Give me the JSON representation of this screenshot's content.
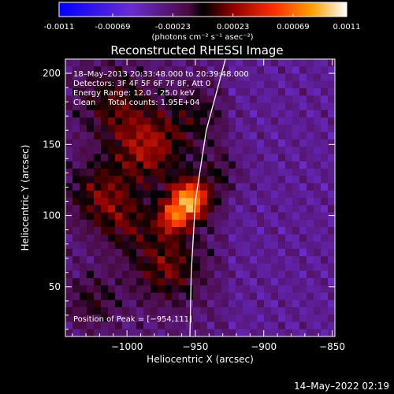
{
  "colorbar": {
    "ticks": [
      "-0.0011",
      "-0.00069",
      "-0.00023",
      "0.00023",
      "0.00069",
      "0.0011"
    ],
    "units": "(photons cm⁻² s⁻¹ asec⁻²)"
  },
  "chart_data": {
    "type": "heatmap",
    "title": "Reconstructed RHESSI Image",
    "xlabel": "Heliocentric X (arcsec)",
    "ylabel": "Heliocentric Y (arcsec)",
    "xlim": [
      -1045,
      -848
    ],
    "ylim": [
      15,
      210
    ],
    "xticks": [
      -1000,
      -950,
      -900,
      -850
    ],
    "yticks": [
      50,
      100,
      150,
      200
    ],
    "xtick_labels": [
      "−1000",
      "−950",
      "−900",
      "−850"
    ],
    "ytick_labels": [
      "50",
      "100",
      "150",
      "200"
    ],
    "value_range": [
      -0.0011,
      0.0011
    ],
    "peak": {
      "x": -954,
      "y": 111
    },
    "sources": [
      {
        "x": -954,
        "y": 111,
        "amp": 0.0011,
        "sigma": 10
      },
      {
        "x": -967,
        "y": 98,
        "amp": 0.0006,
        "sigma": 8
      },
      {
        "x": -985,
        "y": 148,
        "amp": 0.00055,
        "sigma": 18
      },
      {
        "x": -970,
        "y": 65,
        "amp": 0.00045,
        "sigma": 18
      },
      {
        "x": -1010,
        "y": 180,
        "amp": 0.00035,
        "sigma": 18
      },
      {
        "x": -1020,
        "y": 115,
        "amp": 0.0004,
        "sigma": 16
      },
      {
        "x": -1000,
        "y": 95,
        "amp": 0.0003,
        "sigma": 15
      },
      {
        "x": -950,
        "y": 170,
        "amp": 0.00025,
        "sigma": 15
      },
      {
        "x": -1025,
        "y": 40,
        "amp": 0.00025,
        "sigma": 14
      },
      {
        "x": -930,
        "y": 130,
        "amp": 0.0002,
        "sigma": 12
      }
    ],
    "limb_arc": [
      [
        -928,
        210
      ],
      [
        -942,
        160
      ],
      [
        -950,
        110
      ],
      [
        -953,
        60
      ],
      [
        -954,
        15
      ]
    ],
    "annotations": {
      "time": "18–May–2013 20:33:48.000 to 20:39:48.000",
      "detectors": "Detectors: 3F 4F 5F 6F 7F 8F, Att 0",
      "energy": "Energy Range: 12.0 – 25.0 keV",
      "clean": "Clean     Total counts: 1.95E+04",
      "peak_label": "Position of Peak = [−954,111]"
    }
  },
  "footer": {
    "timestamp": "14–May–2022 02:19"
  }
}
